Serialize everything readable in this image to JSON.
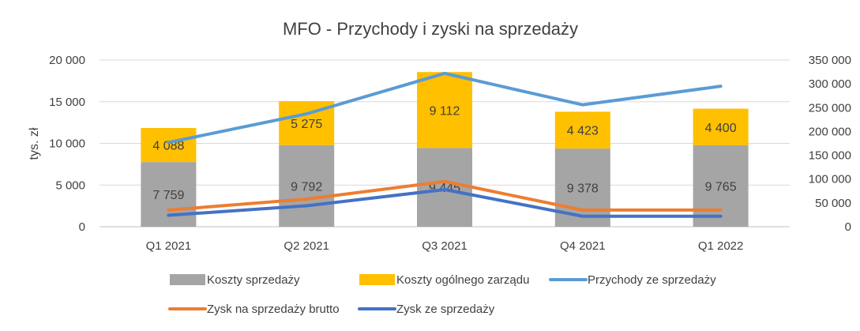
{
  "chart_data": {
    "type": "bar",
    "title": "MFO - Przychody i zyski na sprzedaży",
    "ylabel": "tys. zł",
    "categories": [
      "Q1 2021",
      "Q2 2021",
      "Q3 2021",
      "Q4 2021",
      "Q1 2022"
    ],
    "ylim": [
      0,
      20000
    ],
    "y_ticks": [
      "0",
      "5 000",
      "10 000",
      "15 000",
      "20 000"
    ],
    "y2lim": [
      0,
      350000
    ],
    "y2_ticks": [
      "0",
      "50 000",
      "100 000",
      "150 000",
      "200 000",
      "250 000",
      "300 000",
      "350 000"
    ],
    "stacked": true,
    "grid": true,
    "legend_position": "bottom",
    "bar_series": [
      {
        "name": "Koszty sprzedaży",
        "color": "#a5a5a5",
        "axis": "left",
        "values": [
          7759,
          9792,
          9445,
          9378,
          9765
        ],
        "labels": [
          "7 759",
          "9 792",
          "9 445",
          "9 378",
          "9 765"
        ]
      },
      {
        "name": "Koszty ogólnego zarządu",
        "color": "#ffc000",
        "axis": "left",
        "values": [
          4088,
          5275,
          9112,
          4423,
          4400
        ],
        "labels": [
          "4 088",
          "5 275",
          "9 112",
          "4 423",
          "4 400"
        ]
      }
    ],
    "line_series": [
      {
        "name": "Przychody ze sprzedaży",
        "color": "#5b9bd5",
        "axis": "right",
        "values": [
          177000,
          237000,
          322000,
          256000,
          295000
        ]
      },
      {
        "name": "Zysk na sprzedaży brutto",
        "color": "#ed7d31",
        "axis": "right",
        "values": [
          35000,
          58000,
          95000,
          35000,
          35000
        ]
      },
      {
        "name": "Zysk ze sprzedaży",
        "color": "#4472c4",
        "axis": "right",
        "values": [
          24000,
          44000,
          78000,
          22000,
          22000
        ]
      }
    ]
  }
}
